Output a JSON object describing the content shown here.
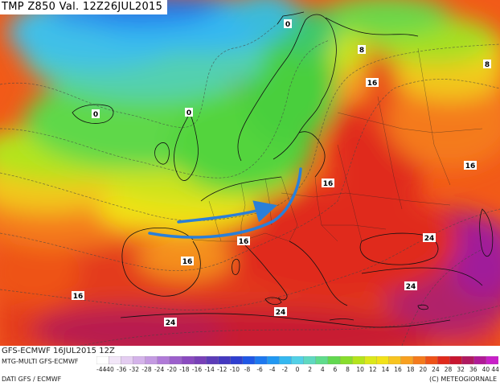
{
  "header": {
    "title": "TMP Z850 Val. 12Z26JUL2015"
  },
  "map": {
    "isotherm_labels": [
      {
        "text": "0",
        "id": "0-scandinavia"
      },
      {
        "text": "0",
        "id": "0-atlantic-west"
      },
      {
        "text": "0",
        "id": "0-north-sea"
      },
      {
        "text": "8",
        "id": "8-barents"
      },
      {
        "text": "8",
        "id": "8-russia-ne"
      },
      {
        "text": "16",
        "id": "16-russia"
      },
      {
        "text": "16",
        "id": "16-kazakh"
      },
      {
        "text": "16",
        "id": "16-poland"
      },
      {
        "text": "16",
        "id": "16-alps"
      },
      {
        "text": "16",
        "id": "16-biscay"
      },
      {
        "text": "16",
        "id": "16-atlantic-sw"
      },
      {
        "text": "24",
        "id": "24-turkey"
      },
      {
        "text": "24",
        "id": "24-aegean"
      },
      {
        "text": "24",
        "id": "24-mediterranean"
      },
      {
        "text": "24",
        "id": "24-north-africa"
      }
    ],
    "arrow_color": "#2a7fd8"
  },
  "footer": {
    "run": "GFS-ECMWF 16JUL2015 12Z",
    "model": "MTG-MULTI GFS-ECMWF",
    "source": "DATI GFS / ECMWF",
    "credit": "(C) METEOGIORNALE"
  },
  "scale": {
    "ticks": [
      "-44",
      "-40",
      "-36",
      "-32",
      "-28",
      "-24",
      "-20",
      "-18",
      "-16",
      "-14",
      "-12",
      "-10",
      "-8",
      "-6",
      "-4",
      "-2",
      "0",
      "2",
      "4",
      "6",
      "8",
      "10",
      "12",
      "14",
      "16",
      "18",
      "20",
      "24",
      "28",
      "32",
      "36",
      "40",
      "44"
    ],
    "colors": [
      "#ffffff",
      "#f2e6f8",
      "#e4cdf1",
      "#d4b3ea",
      "#c49ae2",
      "#b07ad8",
      "#9c5fcc",
      "#8a4ac0",
      "#7840b8",
      "#5c3cb8",
      "#4438c0",
      "#2f3fd0",
      "#1f57e6",
      "#1d78ef",
      "#2198f2",
      "#35b8f0",
      "#52d0e6",
      "#5fd8c0",
      "#5fdc8c",
      "#62d850",
      "#88dd2c",
      "#b4e41c",
      "#dce81a",
      "#f2e218",
      "#f8c420",
      "#f8a020",
      "#f47a1c",
      "#ee5218",
      "#e02a1c",
      "#c81630",
      "#b01a60",
      "#b01a96",
      "#c820c8"
    ]
  }
}
